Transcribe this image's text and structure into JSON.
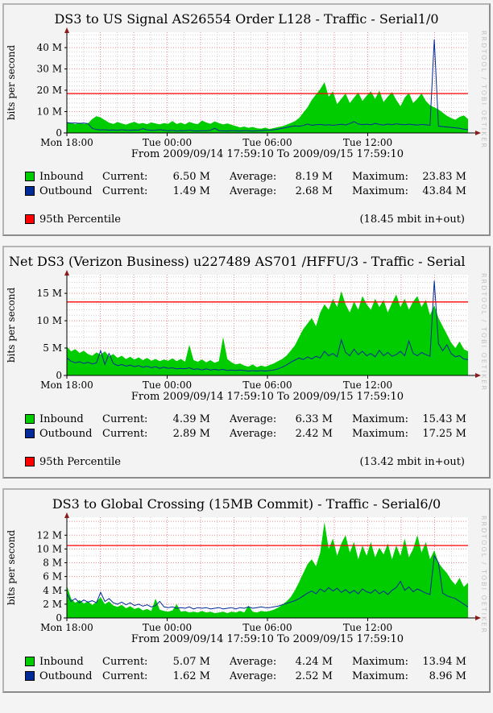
{
  "watermark": "RRDTOOL / TOBI OETIKER",
  "colors": {
    "inbound": "#00cc00",
    "outbound": "#002a97",
    "percentile": "#ff0000",
    "grid_minor": "#cfcfcf",
    "grid_major": "#ee8a8a",
    "axis": "#000000",
    "arrow": "#8b1a1a",
    "plot_background": "#ffffff"
  },
  "legend_labels": {
    "current": "Current:",
    "average": "Average:",
    "maximum": "Maximum:"
  },
  "panels": [
    {
      "title": "DS3 to US Signal AS26554 Order L128 - Traffic - Serial1/0",
      "legend": {
        "rows": [
          {
            "name": "Inbound",
            "current": "6.50 M",
            "average": "8.19 M",
            "maximum": "23.83 M"
          },
          {
            "name": "Outbound",
            "current": "1.49 M",
            "average": "2.68 M",
            "maximum": "43.84 M"
          }
        ],
        "percentile_label": "95th Percentile",
        "percentile_note": "(18.45 mbit in+out)"
      }
    },
    {
      "title": "Net DS3 (Verizon Business) u227489 AS701 /HFFU/3 - Traffic - Serial",
      "legend": {
        "rows": [
          {
            "name": "Inbound",
            "current": "4.39 M",
            "average": "6.33 M",
            "maximum": "15.43 M"
          },
          {
            "name": "Outbound",
            "current": "2.89 M",
            "average": "2.42 M",
            "maximum": "17.25 M"
          }
        ],
        "percentile_label": "95th Percentile",
        "percentile_note": "(13.42 mbit in+out)"
      }
    },
    {
      "title": "DS3 to Global Crossing (15MB Commit) - Traffic - Serial6/0",
      "legend": {
        "rows": [
          {
            "name": "Inbound",
            "current": "5.07 M",
            "average": "4.24 M",
            "maximum": "13.94 M"
          },
          {
            "name": "Outbound",
            "current": "1.62 M",
            "average": "2.52 M",
            "maximum": "8.96 M"
          }
        ]
      }
    }
  ],
  "chart_data": [
    {
      "type": "area",
      "title": "DS3 to US Signal AS26554 Order L128 - Traffic - Serial1/0",
      "ylabel": "bits per second",
      "footer": "From 2009/09/14 17:59:10 To 2009/09/15 17:59:10",
      "x_range": [
        0,
        24
      ],
      "ylim": [
        0,
        47.2
      ],
      "unit": "Mbit/s",
      "xticks": [
        {
          "t": 0,
          "label": "Mon 18:00"
        },
        {
          "t": 6,
          "label": "Tue 00:00"
        },
        {
          "t": 12,
          "label": "Tue 06:00"
        },
        {
          "t": 18,
          "label": "Tue 12:00"
        }
      ],
      "yticks": [
        {
          "v": 0,
          "label": "0"
        },
        {
          "v": 10,
          "label": "10 M"
        },
        {
          "v": 20,
          "label": "20 M"
        },
        {
          "v": 30,
          "label": "30 M"
        },
        {
          "v": 40,
          "label": "40 M"
        }
      ],
      "grid": {
        "minor_x": 1,
        "major_x": 2,
        "minor_y": 2,
        "major_y": 10
      },
      "percentile_mbit": 18.45,
      "stats": {
        "inbound": {
          "current": 6.5,
          "average": 8.19,
          "maximum": 23.83
        },
        "outbound": {
          "current": 1.49,
          "average": 2.68,
          "maximum": 43.84
        }
      },
      "series": [
        {
          "name": "Inbound",
          "style": "area",
          "color": "#00cc00",
          "values": [
            5.2,
            4.6,
            4.1,
            4.8,
            4.2,
            4.5,
            6.5,
            7.8,
            7.2,
            6.0,
            4.8,
            4.2,
            5.1,
            4.4,
            3.9,
            4.6,
            5.2,
            4.3,
            4.7,
            4.1,
            4.9,
            4.4,
            4.0,
            4.6,
            4.3,
            5.6,
            4.2,
            4.8,
            4.0,
            5.2,
            4.5,
            4.1,
            5.8,
            4.9,
            4.3,
            5.4,
            4.6,
            4.0,
            4.4,
            3.8,
            3.2,
            2.6,
            3.0,
            2.4,
            2.8,
            2.2,
            2.0,
            2.5,
            1.8,
            2.3,
            2.7,
            3.1,
            3.8,
            4.6,
            5.5,
            7.0,
            9.5,
            12.0,
            15.5,
            18.0,
            20.5,
            23.8,
            17.0,
            19.5,
            13.5,
            16.0,
            18.5,
            14.0,
            16.5,
            19.0,
            15.0,
            17.5,
            19.5,
            16.0,
            19.8,
            14.5,
            17.0,
            19.2,
            15.5,
            12.5,
            16.5,
            18.8,
            14.0,
            16.0,
            18.5,
            15.0,
            13.0,
            12.0,
            11.0,
            9.5,
            8.0,
            7.0,
            6.2,
            7.5,
            8.2,
            6.5
          ]
        },
        {
          "name": "Outbound",
          "style": "line",
          "color": "#002a97",
          "values": [
            4.8,
            4.6,
            4.7,
            4.5,
            4.6,
            4.4,
            2.2,
            1.6,
            1.4,
            1.5,
            1.3,
            1.4,
            1.2,
            1.5,
            1.3,
            1.2,
            1.4,
            1.3,
            2.0,
            1.4,
            1.2,
            1.3,
            1.5,
            1.3,
            1.0,
            1.2,
            0.9,
            1.1,
            1.0,
            1.3,
            1.0,
            0.9,
            1.1,
            1.0,
            1.2,
            2.2,
            1.1,
            1.0,
            0.9,
            1.1,
            1.0,
            0.9,
            1.1,
            1.0,
            0.9,
            1.0,
            1.1,
            1.2,
            1.3,
            1.5,
            1.8,
            2.2,
            2.6,
            3.0,
            3.3,
            3.1,
            3.5,
            4.2,
            3.6,
            3.8,
            4.0,
            3.7,
            3.9,
            3.6,
            3.8,
            4.1,
            3.7,
            4.4,
            5.3,
            4.2,
            3.9,
            4.1,
            3.8,
            4.5,
            4.0,
            3.7,
            4.2,
            3.9,
            4.3,
            4.0,
            3.8,
            4.1,
            3.9,
            3.7,
            4.0,
            3.8,
            3.6,
            43.8,
            3.2,
            3.0,
            2.8,
            2.6,
            2.4,
            2.2,
            1.8,
            1.5
          ]
        }
      ]
    },
    {
      "type": "area",
      "title": "Net DS3 (Verizon Business) u227489 AS701 /HFFU/3 - Traffic - Serial",
      "ylabel": "bits per second",
      "footer": "From 2009/09/14 17:59:10 To 2009/09/15 17:59:10",
      "x_range": [
        0,
        24
      ],
      "ylim": [
        0,
        18.4
      ],
      "unit": "Mbit/s",
      "xticks": [
        {
          "t": 0,
          "label": "Mon 18:00"
        },
        {
          "t": 6,
          "label": "Tue 00:00"
        },
        {
          "t": 12,
          "label": "Tue 06:00"
        },
        {
          "t": 18,
          "label": "Tue 12:00"
        }
      ],
      "yticks": [
        {
          "v": 0,
          "label": "0"
        },
        {
          "v": 5,
          "label": "5 M"
        },
        {
          "v": 10,
          "label": "10 M"
        },
        {
          "v": 15,
          "label": "15 M"
        }
      ],
      "grid": {
        "minor_x": 1,
        "major_x": 2,
        "minor_y": 1,
        "major_y": 5
      },
      "percentile_mbit": 13.42,
      "stats": {
        "inbound": {
          "current": 4.39,
          "average": 6.33,
          "maximum": 15.43
        },
        "outbound": {
          "current": 2.89,
          "average": 2.42,
          "maximum": 17.25
        }
      },
      "series": [
        {
          "name": "Inbound",
          "style": "area",
          "color": "#00cc00",
          "values": [
            5.3,
            4.4,
            4.8,
            4.1,
            4.5,
            3.9,
            3.6,
            4.2,
            3.8,
            4.4,
            3.5,
            3.9,
            3.2,
            3.6,
            3.0,
            3.4,
            2.9,
            3.3,
            2.8,
            3.2,
            2.7,
            3.0,
            2.6,
            2.9,
            2.7,
            3.1,
            2.6,
            3.0,
            2.5,
            5.6,
            2.8,
            2.5,
            2.9,
            2.4,
            2.8,
            2.3,
            2.6,
            7.0,
            3.0,
            2.4,
            2.0,
            2.2,
            1.8,
            1.6,
            2.0,
            1.5,
            1.8,
            1.6,
            1.9,
            2.2,
            2.6,
            3.0,
            3.6,
            4.5,
            5.5,
            7.0,
            8.5,
            9.5,
            10.5,
            9.0,
            11.5,
            13.0,
            12.0,
            14.0,
            12.5,
            15.4,
            13.0,
            11.5,
            13.5,
            12.0,
            14.5,
            13.0,
            12.0,
            14.0,
            12.5,
            13.8,
            11.5,
            13.2,
            14.8,
            12.5,
            14.0,
            12.0,
            13.5,
            14.5,
            12.5,
            13.8,
            11.0,
            12.8,
            10.5,
            9.0,
            7.5,
            6.0,
            5.0,
            6.2,
            4.8,
            4.4
          ]
        },
        {
          "name": "Outbound",
          "style": "line",
          "color": "#002a97",
          "values": [
            3.2,
            2.6,
            2.3,
            2.5,
            2.2,
            2.4,
            2.1,
            2.3,
            4.5,
            2.0,
            4.0,
            2.2,
            1.8,
            2.0,
            1.7,
            1.9,
            1.6,
            1.8,
            1.5,
            1.7,
            1.4,
            1.6,
            1.3,
            1.5,
            1.3,
            1.4,
            1.2,
            1.3,
            1.2,
            1.4,
            1.1,
            1.2,
            1.0,
            1.2,
            1.0,
            1.1,
            1.0,
            1.1,
            0.9,
            1.0,
            0.9,
            1.0,
            0.9,
            0.8,
            0.9,
            0.8,
            0.9,
            0.8,
            0.9,
            1.0,
            1.2,
            1.5,
            1.9,
            2.4,
            2.8,
            3.2,
            2.9,
            3.4,
            3.0,
            3.5,
            3.2,
            4.4,
            3.6,
            4.0,
            3.4,
            6.5,
            4.2,
            3.6,
            4.8,
            3.8,
            4.4,
            3.6,
            4.0,
            3.4,
            4.6,
            3.6,
            4.2,
            3.5,
            3.8,
            4.4,
            3.6,
            6.3,
            4.0,
            3.6,
            4.2,
            3.8,
            3.5,
            17.3,
            5.8,
            4.5,
            5.6,
            4.0,
            3.4,
            3.6,
            3.0,
            2.9
          ]
        }
      ]
    },
    {
      "type": "area",
      "title": "DS3 to Global Crossing (15MB Commit) - Traffic - Serial6/0",
      "ylabel": "bits per second",
      "footer": "From 2009/09/14 17:59:10 To 2009/09/15 17:59:10",
      "x_range": [
        0,
        24
      ],
      "ylim": [
        0,
        14.6
      ],
      "unit": "Mbit/s",
      "xticks": [
        {
          "t": 0,
          "label": "Mon 18:00"
        },
        {
          "t": 6,
          "label": "Tue 00:00"
        },
        {
          "t": 12,
          "label": "Tue 06:00"
        },
        {
          "t": 18,
          "label": "Tue 12:00"
        }
      ],
      "yticks": [
        {
          "v": 0,
          "label": "0"
        },
        {
          "v": 2,
          "label": "2 M"
        },
        {
          "v": 4,
          "label": "4 M"
        },
        {
          "v": 6,
          "label": "6 M"
        },
        {
          "v": 8,
          "label": "8 M"
        },
        {
          "v": 10,
          "label": "10 M"
        },
        {
          "v": 12,
          "label": "12 M"
        }
      ],
      "grid": {
        "minor_x": 1,
        "major_x": 2,
        "minor_y": 1,
        "major_y": 2
      },
      "percentile_mbit": 10.5,
      "stats": {
        "inbound": {
          "current": 5.07,
          "average": 4.24,
          "maximum": 13.94
        },
        "outbound": {
          "current": 1.62,
          "average": 2.52,
          "maximum": 8.96
        }
      },
      "series": [
        {
          "name": "Inbound",
          "style": "area",
          "color": "#00cc00",
          "values": [
            4.7,
            2.8,
            2.2,
            2.6,
            2.1,
            2.4,
            1.9,
            2.3,
            3.0,
            2.0,
            2.4,
            1.8,
            1.6,
            1.9,
            1.4,
            1.7,
            1.3,
            1.5,
            1.1,
            1.3,
            1.0,
            2.8,
            1.2,
            1.0,
            0.9,
            1.1,
            2.0,
            0.9,
            1.0,
            0.8,
            0.9,
            0.8,
            1.0,
            0.8,
            0.9,
            0.7,
            0.8,
            0.9,
            0.7,
            0.9,
            0.8,
            1.0,
            0.8,
            1.8,
            0.9,
            0.8,
            1.0,
            0.9,
            1.0,
            1.2,
            1.5,
            1.9,
            2.4,
            3.0,
            4.0,
            5.2,
            6.5,
            7.8,
            8.5,
            7.5,
            9.5,
            13.9,
            10.0,
            11.5,
            9.0,
            10.8,
            12.0,
            9.5,
            11.0,
            8.5,
            10.5,
            9.0,
            11.0,
            8.8,
            10.2,
            9.2,
            10.8,
            8.5,
            10.5,
            9.0,
            11.5,
            8.8,
            10.0,
            12.0,
            9.5,
            11.0,
            8.5,
            9.8,
            8.0,
            7.2,
            6.5,
            5.5,
            4.8,
            5.8,
            4.5,
            5.1
          ]
        },
        {
          "name": "Outbound",
          "style": "line",
          "color": "#002a97",
          "values": [
            3.5,
            2.4,
            2.8,
            2.2,
            2.6,
            2.3,
            2.5,
            2.2,
            3.7,
            2.4,
            2.8,
            2.2,
            2.0,
            2.3,
            1.9,
            2.2,
            1.8,
            2.0,
            1.7,
            1.9,
            1.6,
            1.8,
            2.4,
            1.6,
            1.5,
            1.6,
            1.4,
            1.5,
            1.4,
            1.6,
            1.3,
            1.5,
            1.4,
            1.5,
            1.3,
            1.4,
            1.5,
            1.3,
            1.4,
            1.5,
            1.3,
            1.5,
            1.4,
            1.6,
            1.4,
            1.5,
            1.6,
            1.5,
            1.5,
            1.6,
            1.7,
            1.9,
            2.1,
            2.3,
            2.5,
            2.8,
            3.2,
            3.6,
            3.9,
            3.5,
            4.2,
            3.8,
            4.4,
            3.9,
            4.3,
            3.7,
            4.1,
            3.6,
            4.0,
            3.5,
            4.2,
            3.8,
            3.6,
            4.1,
            3.5,
            3.9,
            3.4,
            4.0,
            4.4,
            5.3,
            4.0,
            4.5,
            3.8,
            4.2,
            3.9,
            3.6,
            3.4,
            9.0,
            8.0,
            3.6,
            3.2,
            3.0,
            2.8,
            2.4,
            2.0,
            1.6
          ]
        }
      ]
    }
  ]
}
